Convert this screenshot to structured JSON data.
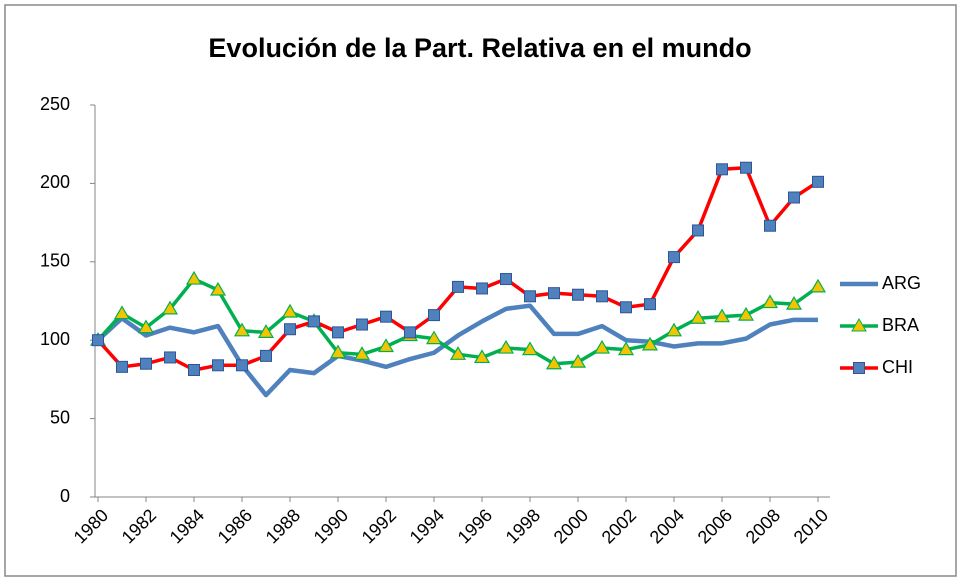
{
  "chart_data": {
    "type": "line",
    "title": "Evolución de la Part. Relativa en el mundo",
    "x": [
      1980,
      1981,
      1982,
      1983,
      1984,
      1985,
      1986,
      1987,
      1988,
      1989,
      1990,
      1991,
      1992,
      1993,
      1994,
      1995,
      1996,
      1997,
      1998,
      1999,
      2000,
      2001,
      2002,
      2003,
      2004,
      2005,
      2006,
      2007,
      2008,
      2009,
      2010
    ],
    "series": [
      {
        "name": "ARG",
        "color": "#4f81bd",
        "marker": "none",
        "values": [
          100,
          114,
          103,
          108,
          105,
          109,
          84,
          65,
          81,
          79,
          90,
          87,
          83,
          88,
          92,
          103,
          112,
          120,
          122,
          104,
          104,
          109,
          100,
          99,
          96,
          98,
          98,
          101,
          110,
          113,
          113
        ]
      },
      {
        "name": "BRA",
        "color": "#00b050",
        "marker": "triangle",
        "marker_color": "#f5c400",
        "values": [
          100,
          117,
          108,
          120,
          139,
          132,
          106,
          105,
          118,
          112,
          92,
          91,
          96,
          103,
          101,
          91,
          89,
          95,
          94,
          85,
          86,
          95,
          94,
          97,
          106,
          114,
          115,
          116,
          124,
          123,
          134
        ]
      },
      {
        "name": "CHI",
        "color": "#ff0000",
        "marker": "square",
        "marker_color": "#4f81bd",
        "values": [
          100,
          83,
          85,
          89,
          81,
          84,
          84,
          90,
          107,
          112,
          105,
          110,
          115,
          105,
          116,
          134,
          133,
          139,
          128,
          130,
          129,
          128,
          121,
          123,
          153,
          170,
          209,
          210,
          173,
          191,
          201
        ]
      }
    ],
    "xlim": [
      1980,
      2010
    ],
    "xticks": [
      1980,
      1982,
      1984,
      1986,
      1988,
      1990,
      1992,
      1994,
      1996,
      1998,
      2000,
      2002,
      2004,
      2006,
      2008,
      2010
    ],
    "ylim": [
      0,
      250
    ],
    "yticks": [
      0,
      50,
      100,
      150,
      200,
      250
    ],
    "grid": false,
    "legend": "right"
  }
}
